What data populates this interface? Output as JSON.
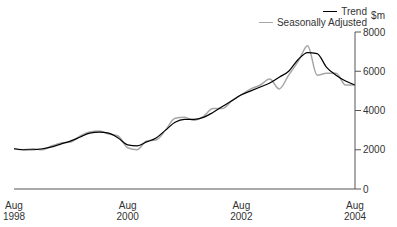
{
  "chart_data": {
    "type": "line",
    "y_label": "$m",
    "legend": "top-right",
    "categories": [
      "Aug 1998",
      null,
      null,
      null,
      null,
      null,
      null,
      null,
      null,
      null,
      null,
      null,
      "Aug 2000",
      null,
      null,
      null,
      null,
      null,
      null,
      null,
      null,
      null,
      null,
      null,
      "Aug 2002",
      null,
      null,
      null,
      null,
      null,
      null,
      null,
      null,
      null,
      null,
      null,
      "Aug 2004"
    ],
    "ylim": [
      0,
      8000
    ],
    "yticks": [
      0,
      2000,
      4000,
      6000,
      8000
    ],
    "series": [
      {
        "name": "Trend",
        "color": "#000000",
        "values": [
          2050,
          2000,
          2000,
          2050,
          2150,
          2300,
          2450,
          2650,
          2850,
          2900,
          2850,
          2600,
          2250,
          2200,
          2400,
          2600,
          3000,
          3400,
          3550,
          3550,
          3650,
          3900,
          4200,
          4500,
          4800,
          5000,
          5200,
          5400,
          5700,
          6000,
          6600,
          6950,
          6900,
          6200,
          5800,
          5500,
          5300
        ]
      },
      {
        "name": "Seasonally Adjusted",
        "color": "#a6a6a6",
        "values": [
          2050,
          2000,
          2050,
          2000,
          2200,
          2350,
          2400,
          2700,
          2900,
          2950,
          2800,
          2700,
          2100,
          2000,
          2450,
          2500,
          3000,
          3600,
          3650,
          3500,
          3700,
          4100,
          4100,
          4500,
          4800,
          5100,
          5300,
          5600,
          5100,
          5800,
          6500,
          7300,
          5800,
          5900,
          5900,
          5300,
          5300
        ]
      }
    ]
  }
}
